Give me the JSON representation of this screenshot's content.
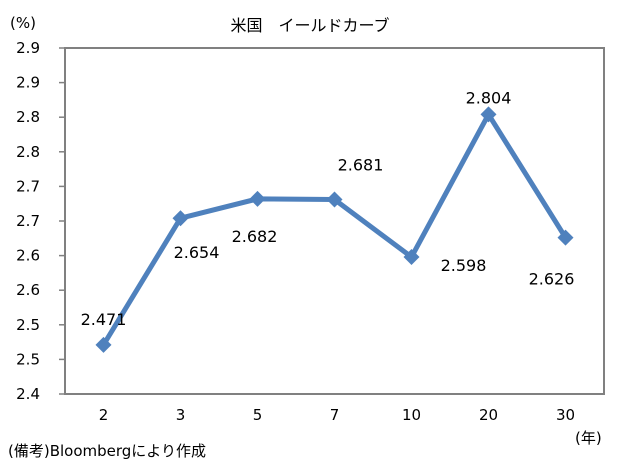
{
  "chart_data": {
    "type": "line",
    "title": "米国　イールドカーブ",
    "xlabel": "(年)",
    "ylabel": "(%)",
    "categories": [
      "2",
      "3",
      "5",
      "7",
      "10",
      "20",
      "30"
    ],
    "series": [
      {
        "name": "米国イールド",
        "values": [
          2.471,
          2.654,
          2.682,
          2.681,
          2.598,
          2.804,
          2.626
        ],
        "data_labels": [
          "2.471",
          "2.654",
          "2.682",
          "2.681",
          "2.598",
          "2.804",
          "2.626"
        ],
        "color": "#4F81BD",
        "marker": "diamond"
      }
    ],
    "ylim": [
      2.4,
      2.9
    ],
    "ytick_values": [
      2.4,
      2.45,
      2.5,
      2.55,
      2.6,
      2.65,
      2.7,
      2.75,
      2.8,
      2.85,
      2.9
    ],
    "ytick_labels": [
      "2.4",
      "2.5",
      "2.5",
      "2.6",
      "2.6",
      "2.7",
      "2.7",
      "2.8",
      "2.8",
      "2.9",
      "2.9"
    ],
    "grid": false,
    "legend": "none",
    "source_note": "(備考)Bloombergにより作成"
  }
}
